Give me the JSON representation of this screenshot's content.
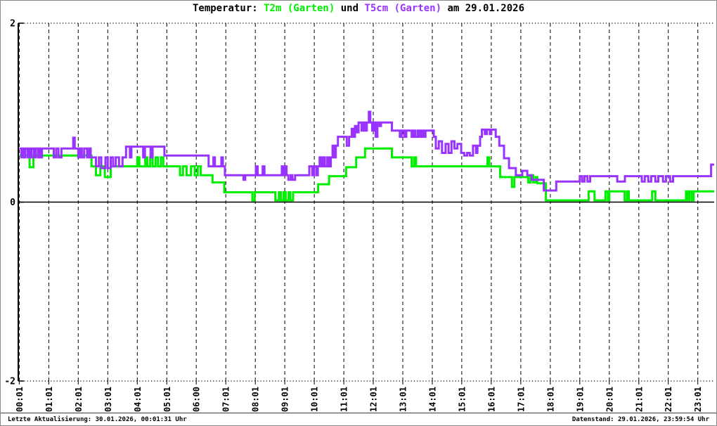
{
  "title": {
    "part_black_1": "Temperatur: ",
    "part_green": "T2m (Garten)",
    "part_black_2": " und ",
    "part_purple": "T5cm (Garten)",
    "part_black_3": " am 29.01.2026"
  },
  "colors": {
    "t2m_green": "#00ee00",
    "t5cm_purple": "#9933ff",
    "axis_black": "#000000"
  },
  "y_axis": {
    "labels": [
      "2",
      "0",
      "-2"
    ],
    "values": [
      2,
      0,
      -2
    ],
    "min": -2,
    "max": 2
  },
  "x_axis": {
    "labels": [
      "00:01",
      "01:01",
      "02:01",
      "03:01",
      "04:01",
      "05:01",
      "06:00",
      "07:01",
      "08:01",
      "09:01",
      "10:01",
      "11:01",
      "12:01",
      "13:01",
      "14:01",
      "15:01",
      "16:01",
      "17:01",
      "18:01",
      "19:01",
      "20:01",
      "21:01",
      "22:01",
      "23:01"
    ]
  },
  "footer": {
    "left": "Letzte Aktualisierung: 30.01.2026, 00:01:31 Uhr",
    "right": "Datenstand: 29.01.2026, 23:59:54 Uhr"
  },
  "chart_data": {
    "type": "line",
    "title": "Temperatur: T2m (Garten) und T5cm (Garten) am 29.01.2026",
    "xlabel": "",
    "ylabel": "",
    "x_unit": "hour of day",
    "xlim": [
      0,
      23.55
    ],
    "ylim": [
      -2,
      2
    ],
    "grid": "dashed vertical gridline per hour; dotted top/bottom at +2/-2; solid zero line",
    "legend_position": "in title",
    "interpolation": "step-after",
    "x_tick_labels": [
      "00:01",
      "01:01",
      "02:01",
      "03:01",
      "04:01",
      "05:01",
      "06:00",
      "07:01",
      "08:01",
      "09:01",
      "10:01",
      "11:01",
      "12:01",
      "13:01",
      "14:01",
      "15:01",
      "16:01",
      "17:01",
      "18:01",
      "19:01",
      "20:01",
      "21:01",
      "22:01",
      "23:01"
    ],
    "series": [
      {
        "name": "T2m (Garten)",
        "color": "#00ee00",
        "points": [
          [
            0,
            0.52
          ],
          [
            0.35,
            0.39
          ],
          [
            0.48,
            0.52
          ],
          [
            2.45,
            0.4
          ],
          [
            2.6,
            0.3
          ],
          [
            2.75,
            0.4
          ],
          [
            2.9,
            0.28
          ],
          [
            3.1,
            0.4
          ],
          [
            4.0,
            0.5
          ],
          [
            4.07,
            0.4
          ],
          [
            4.27,
            0.5
          ],
          [
            4.34,
            0.4
          ],
          [
            4.44,
            0.5
          ],
          [
            4.52,
            0.4
          ],
          [
            4.62,
            0.5
          ],
          [
            4.7,
            0.4
          ],
          [
            4.8,
            0.5
          ],
          [
            4.88,
            0.4
          ],
          [
            5.45,
            0.3
          ],
          [
            5.55,
            0.4
          ],
          [
            5.67,
            0.3
          ],
          [
            5.82,
            0.4
          ],
          [
            5.95,
            0.3
          ],
          [
            6.05,
            0.4
          ],
          [
            6.15,
            0.3
          ],
          [
            6.55,
            0.22
          ],
          [
            6.95,
            0.11
          ],
          [
            7.9,
            0.02
          ],
          [
            7.98,
            0.11
          ],
          [
            8.68,
            0.02
          ],
          [
            8.8,
            0.11
          ],
          [
            8.87,
            0.02
          ],
          [
            8.96,
            0.11
          ],
          [
            9.03,
            0.02
          ],
          [
            9.13,
            0.11
          ],
          [
            9.19,
            0.02
          ],
          [
            9.28,
            0.11
          ],
          [
            10.13,
            0.2
          ],
          [
            10.5,
            0.29
          ],
          [
            11.08,
            0.39
          ],
          [
            11.42,
            0.5
          ],
          [
            11.72,
            0.6
          ],
          [
            12.63,
            0.5
          ],
          [
            13.3,
            0.4
          ],
          [
            13.38,
            0.5
          ],
          [
            13.45,
            0.4
          ],
          [
            15.87,
            0.5
          ],
          [
            15.93,
            0.4
          ],
          [
            16.3,
            0.28
          ],
          [
            16.7,
            0.17
          ],
          [
            16.78,
            0.28
          ],
          [
            17.25,
            0.22
          ],
          [
            17.33,
            0.3
          ],
          [
            17.42,
            0.22
          ],
          [
            17.5,
            0.28
          ],
          [
            17.56,
            0.21
          ],
          [
            17.85,
            0.02
          ],
          [
            19.3,
            0.12
          ],
          [
            19.5,
            0.02
          ],
          [
            19.87,
            0.12
          ],
          [
            19.95,
            0.02
          ],
          [
            20.0,
            0.12
          ],
          [
            20.52,
            0.02
          ],
          [
            20.6,
            0.12
          ],
          [
            20.66,
            0.02
          ],
          [
            21.45,
            0.12
          ],
          [
            21.56,
            0.02
          ],
          [
            22.6,
            0.12
          ],
          [
            22.66,
            0.02
          ],
          [
            22.72,
            0.12
          ],
          [
            22.8,
            0.02
          ],
          [
            22.86,
            0.12
          ]
        ]
      },
      {
        "name": "T5cm (Garten)",
        "color": "#9933ff",
        "points": [
          [
            0,
            0.6
          ],
          [
            0.07,
            0.5
          ],
          [
            0.1,
            0.6
          ],
          [
            0.15,
            0.5
          ],
          [
            0.2,
            0.6
          ],
          [
            0.28,
            0.5
          ],
          [
            0.32,
            0.6
          ],
          [
            0.38,
            0.5
          ],
          [
            0.42,
            0.6
          ],
          [
            0.5,
            0.5
          ],
          [
            0.55,
            0.6
          ],
          [
            0.63,
            0.5
          ],
          [
            0.68,
            0.6
          ],
          [
            0.73,
            0.5
          ],
          [
            0.77,
            0.6
          ],
          [
            1.17,
            0.5
          ],
          [
            1.25,
            0.6
          ],
          [
            1.33,
            0.5
          ],
          [
            1.43,
            0.6
          ],
          [
            1.83,
            0.72
          ],
          [
            1.88,
            0.6
          ],
          [
            2.0,
            0.5
          ],
          [
            2.05,
            0.6
          ],
          [
            2.12,
            0.5
          ],
          [
            2.2,
            0.6
          ],
          [
            2.3,
            0.5
          ],
          [
            2.36,
            0.6
          ],
          [
            2.42,
            0.5
          ],
          [
            2.6,
            0.4
          ],
          [
            2.7,
            0.5
          ],
          [
            2.78,
            0.38
          ],
          [
            2.92,
            0.5
          ],
          [
            3.0,
            0.38
          ],
          [
            3.1,
            0.5
          ],
          [
            3.18,
            0.4
          ],
          [
            3.27,
            0.5
          ],
          [
            3.38,
            0.4
          ],
          [
            3.5,
            0.5
          ],
          [
            3.62,
            0.62
          ],
          [
            3.75,
            0.5
          ],
          [
            3.8,
            0.62
          ],
          [
            4.2,
            0.5
          ],
          [
            4.26,
            0.62
          ],
          [
            4.45,
            0.5
          ],
          [
            4.52,
            0.62
          ],
          [
            4.92,
            0.52
          ],
          [
            6.42,
            0.4
          ],
          [
            6.58,
            0.5
          ],
          [
            6.63,
            0.4
          ],
          [
            6.85,
            0.5
          ],
          [
            6.9,
            0.4
          ],
          [
            6.97,
            0.3
          ],
          [
            7.6,
            0.25
          ],
          [
            7.66,
            0.3
          ],
          [
            8.02,
            0.4
          ],
          [
            8.08,
            0.3
          ],
          [
            8.25,
            0.4
          ],
          [
            8.31,
            0.3
          ],
          [
            8.9,
            0.4
          ],
          [
            8.96,
            0.3
          ],
          [
            9.0,
            0.4
          ],
          [
            9.06,
            0.3
          ],
          [
            9.12,
            0.25
          ],
          [
            9.2,
            0.3
          ],
          [
            9.26,
            0.25
          ],
          [
            9.35,
            0.3
          ],
          [
            9.83,
            0.4
          ],
          [
            9.93,
            0.3
          ],
          [
            10.0,
            0.4
          ],
          [
            10.08,
            0.3
          ],
          [
            10.12,
            0.4
          ],
          [
            10.18,
            0.5
          ],
          [
            10.24,
            0.4
          ],
          [
            10.3,
            0.5
          ],
          [
            10.36,
            0.4
          ],
          [
            10.44,
            0.5
          ],
          [
            10.5,
            0.4
          ],
          [
            10.56,
            0.5
          ],
          [
            10.62,
            0.63
          ],
          [
            10.68,
            0.5
          ],
          [
            10.73,
            0.63
          ],
          [
            10.8,
            0.73
          ],
          [
            11.1,
            0.63
          ],
          [
            11.18,
            0.73
          ],
          [
            11.27,
            0.82
          ],
          [
            11.33,
            0.73
          ],
          [
            11.38,
            0.85
          ],
          [
            11.44,
            0.78
          ],
          [
            11.5,
            0.89
          ],
          [
            11.6,
            0.8
          ],
          [
            11.66,
            0.89
          ],
          [
            11.73,
            0.8
          ],
          [
            11.78,
            0.89
          ],
          [
            11.85,
            1.01
          ],
          [
            11.9,
            0.89
          ],
          [
            11.96,
            0.8
          ],
          [
            12.02,
            0.89
          ],
          [
            12.08,
            0.73
          ],
          [
            12.14,
            0.89
          ],
          [
            12.2,
            0.85
          ],
          [
            12.26,
            0.89
          ],
          [
            12.63,
            0.8
          ],
          [
            12.9,
            0.73
          ],
          [
            12.96,
            0.8
          ],
          [
            13.05,
            0.73
          ],
          [
            13.12,
            0.8
          ],
          [
            13.3,
            0.73
          ],
          [
            13.36,
            0.8
          ],
          [
            13.42,
            0.73
          ],
          [
            13.5,
            0.8
          ],
          [
            13.57,
            0.73
          ],
          [
            13.63,
            0.8
          ],
          [
            13.7,
            0.73
          ],
          [
            13.77,
            0.8
          ],
          [
            14.05,
            0.73
          ],
          [
            14.12,
            0.6
          ],
          [
            14.22,
            0.68
          ],
          [
            14.33,
            0.55
          ],
          [
            14.45,
            0.65
          ],
          [
            14.55,
            0.55
          ],
          [
            14.65,
            0.68
          ],
          [
            14.75,
            0.6
          ],
          [
            14.85,
            0.65
          ],
          [
            14.98,
            0.55
          ],
          [
            15.08,
            0.52
          ],
          [
            15.18,
            0.55
          ],
          [
            15.27,
            0.52
          ],
          [
            15.38,
            0.63
          ],
          [
            15.48,
            0.55
          ],
          [
            15.53,
            0.63
          ],
          [
            15.62,
            0.73
          ],
          [
            15.68,
            0.81
          ],
          [
            15.78,
            0.76
          ],
          [
            15.85,
            0.81
          ],
          [
            15.95,
            0.76
          ],
          [
            16.0,
            0.81
          ],
          [
            16.15,
            0.73
          ],
          [
            16.27,
            0.63
          ],
          [
            16.43,
            0.49
          ],
          [
            16.6,
            0.38
          ],
          [
            16.83,
            0.3
          ],
          [
            17.05,
            0.35
          ],
          [
            17.22,
            0.3
          ],
          [
            17.37,
            0.25
          ],
          [
            17.78,
            0.13
          ],
          [
            18.2,
            0.23
          ],
          [
            19.0,
            0.29
          ],
          [
            19.08,
            0.23
          ],
          [
            19.16,
            0.29
          ],
          [
            19.26,
            0.23
          ],
          [
            19.35,
            0.29
          ],
          [
            20.27,
            0.23
          ],
          [
            20.53,
            0.29
          ],
          [
            21.1,
            0.23
          ],
          [
            21.2,
            0.29
          ],
          [
            21.32,
            0.23
          ],
          [
            21.42,
            0.29
          ],
          [
            21.56,
            0.23
          ],
          [
            21.66,
            0.29
          ],
          [
            21.82,
            0.23
          ],
          [
            21.92,
            0.29
          ],
          [
            22.06,
            0.23
          ],
          [
            22.16,
            0.29
          ],
          [
            23.45,
            0.42
          ]
        ]
      }
    ]
  }
}
